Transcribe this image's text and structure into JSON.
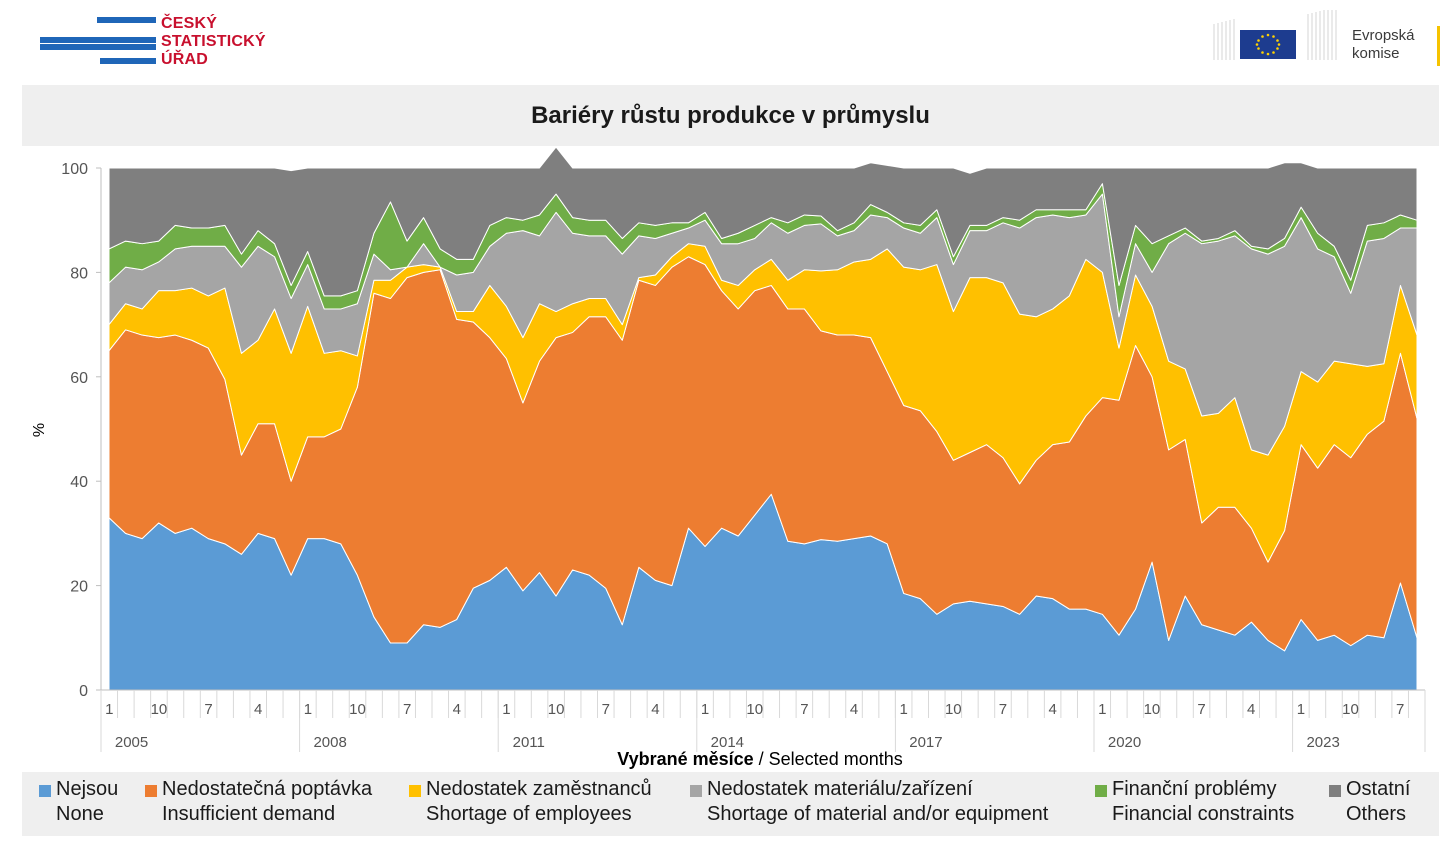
{
  "logos": {
    "czso_lines": [
      "ČESKÝ",
      "STATISTICKÝ",
      "ÚŘAD"
    ],
    "eu_lines": [
      "Evropská",
      "komise"
    ]
  },
  "colors": {
    "none": "#5b9bd5",
    "demand": "#ed7d31",
    "employees": "#ffc000",
    "material": "#a5a5a5",
    "financial": "#70ad47",
    "others": "#7f7f7f",
    "czso_red": "#c8102e",
    "czso_blue": "#1f66b8",
    "eu_blue": "#1d3c8f"
  },
  "chart_data": {
    "type": "area",
    "stacked": true,
    "title": "Bariéry růstu produkce v průmyslu",
    "ylabel": "%",
    "xlabel_bold": "Vybrané měsíce",
    "xlabel_rest": " / Selected months",
    "ylim": [
      0,
      100
    ],
    "yticks": [
      0,
      20,
      40,
      60,
      80,
      100
    ],
    "month_tick_labels": [
      "1",
      "10",
      "7",
      "4",
      "1",
      "10",
      "7",
      "4",
      "1",
      "10",
      "7",
      "4",
      "1",
      "10",
      "7",
      "4",
      "1",
      "10",
      "7",
      "4",
      "1",
      "10",
      "7",
      "4",
      "1",
      "10",
      "7"
    ],
    "year_labels": [
      "2005",
      "2008",
      "2011",
      "2014",
      "2017",
      "2020",
      "2023"
    ],
    "series": [
      {
        "name": "Nejsou",
        "name_en": "None",
        "color_key": "none",
        "values": [
          33,
          30,
          29,
          32,
          30,
          31,
          29,
          28,
          26,
          30,
          29,
          22,
          29,
          29,
          28,
          22,
          14,
          9,
          9,
          12.5,
          12,
          13.5,
          19.5,
          21,
          23.5,
          19,
          22.5,
          18,
          23,
          22,
          19.5,
          12.5,
          23.5,
          21,
          20,
          31,
          27.5,
          31,
          29.5,
          33.5,
          37.5,
          28.5,
          28,
          28.8,
          28.5,
          29,
          29.5,
          28,
          18.5,
          17.5,
          14.5,
          16.5,
          17,
          16.5,
          16,
          14.5,
          18,
          17.5,
          15.5,
          15.5,
          14.5,
          10.5,
          15.5,
          24.5,
          9.5,
          18,
          12.5,
          11.5,
          10.5,
          13,
          9.5,
          7.5,
          13.5,
          9.5,
          10.5,
          8.5,
          10.5,
          10,
          20.5,
          10
        ]
      },
      {
        "name": "Nedostatečná poptávka",
        "name_en": "Insufficient demand",
        "color_key": "demand",
        "values": [
          32,
          39,
          39,
          35.5,
          38,
          36,
          36.5,
          31.5,
          19,
          21,
          22,
          18,
          19.5,
          19.5,
          22,
          36,
          62,
          66,
          70,
          67.5,
          68.5,
          57.5,
          51,
          46.5,
          40,
          36,
          40.5,
          49.5,
          45.5,
          49.5,
          52,
          54.5,
          55,
          56.5,
          61,
          52,
          54,
          45.5,
          43.5,
          43,
          40,
          44.5,
          45,
          40,
          39.5,
          39,
          38,
          33,
          36,
          36,
          35,
          27.5,
          28.5,
          30.5,
          28.5,
          25,
          26,
          29.5,
          32,
          37,
          41.5,
          45,
          50.5,
          35.5,
          36.5,
          30,
          19.5,
          23.5,
          24.5,
          18,
          15,
          23,
          33.5,
          33,
          36.5,
          36,
          38.5,
          41.5,
          44,
          42
        ]
      },
      {
        "name": "Nedostatek zaměstnanců",
        "name_en": "Shortage of employees",
        "color_key": "employees",
        "values": [
          5,
          5,
          5,
          9,
          8.5,
          10,
          10,
          17.5,
          19.5,
          16,
          22,
          24.5,
          25,
          16,
          15,
          6,
          2.5,
          3.5,
          2,
          1.5,
          0.5,
          1.5,
          2,
          10,
          10,
          12.5,
          11,
          5,
          5.5,
          3.5,
          3.5,
          3,
          0.5,
          2,
          2,
          2.5,
          3.5,
          2,
          4.5,
          4,
          5,
          5.5,
          7.5,
          11.5,
          12.5,
          14,
          15,
          23.5,
          26.5,
          27,
          32,
          28.5,
          33.5,
          32,
          33.5,
          32.5,
          27.5,
          26,
          28,
          30,
          24,
          10,
          13.5,
          13.5,
          17,
          13.5,
          20.5,
          18,
          21,
          15,
          20.5,
          20,
          14,
          16.5,
          16,
          18,
          13,
          11,
          13,
          16
        ]
      },
      {
        "name": "Nedostatek materiálu/zařízení",
        "name_en": "Shortage of material and/or equipment",
        "color_key": "material",
        "values": [
          8,
          7,
          7.5,
          5.5,
          8,
          8,
          9.5,
          8,
          16.5,
          18,
          10,
          10.5,
          8,
          8.5,
          8,
          10,
          5,
          2,
          0,
          4,
          0,
          7,
          7.5,
          7.5,
          14,
          20.5,
          13,
          19,
          13.5,
          12,
          12,
          13.5,
          8,
          7,
          4.5,
          3,
          5,
          7,
          8,
          6,
          7,
          9,
          8.5,
          9,
          6.5,
          6,
          8.5,
          6,
          7.5,
          7,
          9,
          9,
          9,
          9,
          11.5,
          16.5,
          19,
          18,
          15,
          8.5,
          15,
          6,
          6,
          6.5,
          22.5,
          26,
          33,
          33,
          31,
          38.5,
          38.5,
          34.5,
          29.5,
          25.5,
          20,
          13.5,
          24,
          24,
          11,
          20.5
        ]
      },
      {
        "name": "Finanční problémy",
        "name_en": "Financial constraints",
        "color_key": "financial",
        "values": [
          6.5,
          5,
          5,
          4,
          4.5,
          3.5,
          3.5,
          4,
          2.5,
          3,
          2.5,
          2.5,
          2.5,
          2.5,
          2.5,
          2.5,
          4,
          13,
          5,
          5,
          3.5,
          3,
          2.5,
          4,
          3,
          2,
          4,
          3.5,
          3,
          3,
          3,
          3,
          2.5,
          2.5,
          2,
          1,
          1.5,
          1,
          2,
          2.5,
          1,
          2,
          2,
          1.5,
          1,
          1.5,
          2,
          1,
          1,
          1.5,
          1.5,
          1.5,
          1,
          1,
          1,
          1.5,
          1.5,
          1,
          1.5,
          1,
          2,
          6,
          3.5,
          5.5,
          1.5,
          1,
          0.5,
          0.5,
          1,
          0.5,
          1,
          1.5,
          2,
          3,
          2,
          2.5,
          3,
          3,
          2.5,
          1.5
        ]
      },
      {
        "name": "Ostatní",
        "name_en": "Others",
        "color_key": "others",
        "values": [
          15.5,
          14,
          14.5,
          14,
          11,
          11.5,
          11.5,
          11,
          16.5,
          12,
          14.5,
          22,
          16,
          24.5,
          24.5,
          23.5,
          12.5,
          6.5,
          14,
          9.5,
          15.5,
          17.5,
          17.5,
          11,
          9.5,
          10,
          9,
          9,
          9.5,
          10,
          10,
          13.5,
          10.5,
          11,
          10.5,
          10.5,
          8.5,
          13.5,
          12.5,
          11,
          9.5,
          10.5,
          9,
          9.2,
          12,
          10.5,
          8,
          9,
          10.5,
          11,
          8,
          17,
          10,
          11,
          9.5,
          10,
          8,
          8,
          8,
          8,
          3,
          22.5,
          11,
          14.5,
          13,
          11.5,
          14,
          13.5,
          12,
          15,
          15.5,
          14.5,
          8.5,
          12.5,
          15,
          21.5,
          11,
          10.5,
          9,
          10
        ]
      }
    ]
  },
  "legend": [
    {
      "line1": "Nejsou",
      "line2": "None",
      "color_key": "none"
    },
    {
      "line1": "Nedostatečná poptávka",
      "line2": "Insufficient demand",
      "color_key": "demand"
    },
    {
      "line1": "Nedostatek zaměstnanců",
      "line2": "Shortage of employees",
      "color_key": "employees"
    },
    {
      "line1": "Nedostatek materiálu/zařízení",
      "line2": "Shortage of material and/or equipment",
      "color_key": "material"
    },
    {
      "line1": "Finanční problémy",
      "line2": "Financial constraints",
      "color_key": "financial"
    },
    {
      "line1": "Ostatní",
      "line2": "Others",
      "color_key": "others"
    }
  ]
}
